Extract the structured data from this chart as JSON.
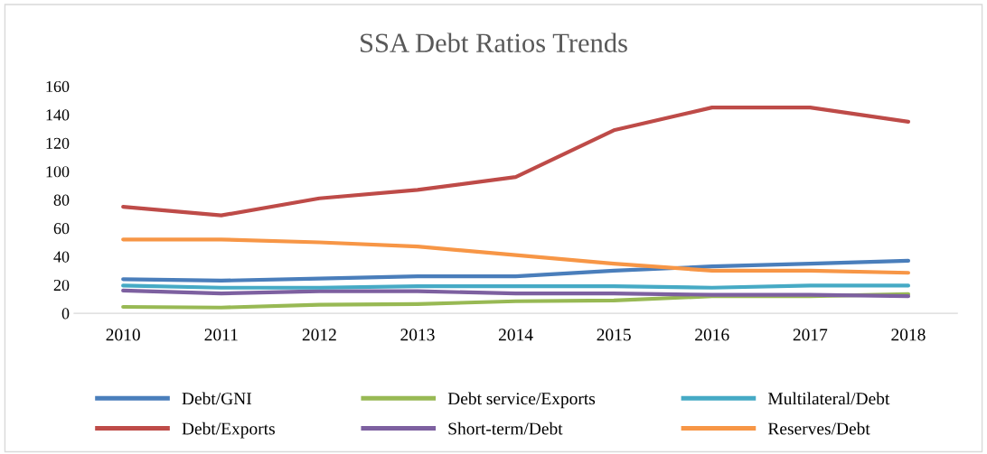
{
  "chart_data": {
    "type": "line",
    "title": "SSA Debt Ratios Trends",
    "categories": [
      "2010",
      "2011",
      "2012",
      "2013",
      "2014",
      "2015",
      "2016",
      "2017",
      "2018"
    ],
    "series": [
      {
        "name": "Debt/GNI",
        "color": "#4a7ebb",
        "values": [
          24,
          23,
          24.5,
          26,
          26,
          30,
          33,
          35,
          37
        ]
      },
      {
        "name": "Debt/Exports",
        "color": "#be4b48",
        "values": [
          75,
          69,
          81,
          87,
          96,
          129,
          145,
          145,
          135
        ]
      },
      {
        "name": "Debt service/Exports",
        "color": "#98b954",
        "values": [
          4.5,
          4,
          6,
          6.5,
          8.5,
          9,
          12,
          12,
          13.5
        ]
      },
      {
        "name": "Short-term/Debt",
        "color": "#7d60a0",
        "values": [
          16,
          14,
          15.5,
          15.5,
          14,
          14,
          13,
          13,
          12
        ]
      },
      {
        "name": "Multilateral/Debt",
        "color": "#46aac5",
        "values": [
          19.5,
          18,
          18,
          19,
          19,
          19,
          18,
          19.5,
          19.5
        ]
      },
      {
        "name": "Reserves/Debt",
        "color": "#f79646",
        "values": [
          52,
          52,
          50,
          47,
          41,
          35,
          30,
          30,
          28.5
        ]
      }
    ],
    "ylim": [
      0,
      160
    ],
    "yticks": [
      0,
      20,
      40,
      60,
      80,
      100,
      120,
      140,
      160
    ],
    "grid": false,
    "legend": "bottom"
  }
}
